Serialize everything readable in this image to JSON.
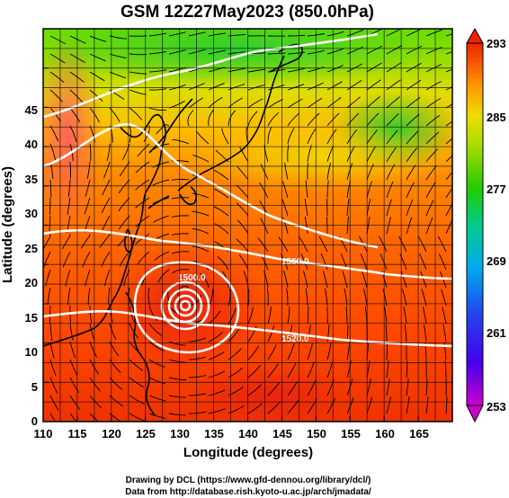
{
  "title": "GSM 12Z27May2023 (850.0hPa)",
  "axes": {
    "x_label": "Longitude (degrees)",
    "y_label": "Latitude  (degrees)",
    "x_range": [
      110,
      170
    ],
    "y_range": [
      0,
      50
    ],
    "x_ticks": [
      "110",
      "115",
      "120",
      "125",
      "130",
      "135",
      "140",
      "145",
      "150",
      "155",
      "160",
      "165"
    ],
    "y_ticks": [
      "0",
      "5",
      "10",
      "15",
      "20",
      "25",
      "30",
      "35",
      "40",
      "45"
    ],
    "grid": true,
    "grid_step_degrees": 2.5
  },
  "colorbar": {
    "labels": [
      "293",
      "285",
      "277",
      "269",
      "261",
      "253"
    ],
    "range": [
      253,
      293
    ],
    "colors": [
      "#cc00cc",
      "#2222ee",
      "#00aaee",
      "#00cc66",
      "#22cc00",
      "#eedd00",
      "#ff9900",
      "#ff5500",
      "#ee2200"
    ]
  },
  "contours": {
    "labels": [
      "1560.0",
      "1500.0",
      "1520.0"
    ]
  },
  "typhoon_center": {
    "lon": 131.0,
    "lat": 16.5
  },
  "credits": {
    "line1": "Drawing by DCL (https://www.gfd-dennou.org/library/dcl/)",
    "line2": "Data from http://database.rish.kyoto-u.ac.jp/arch/jmadata/"
  }
}
